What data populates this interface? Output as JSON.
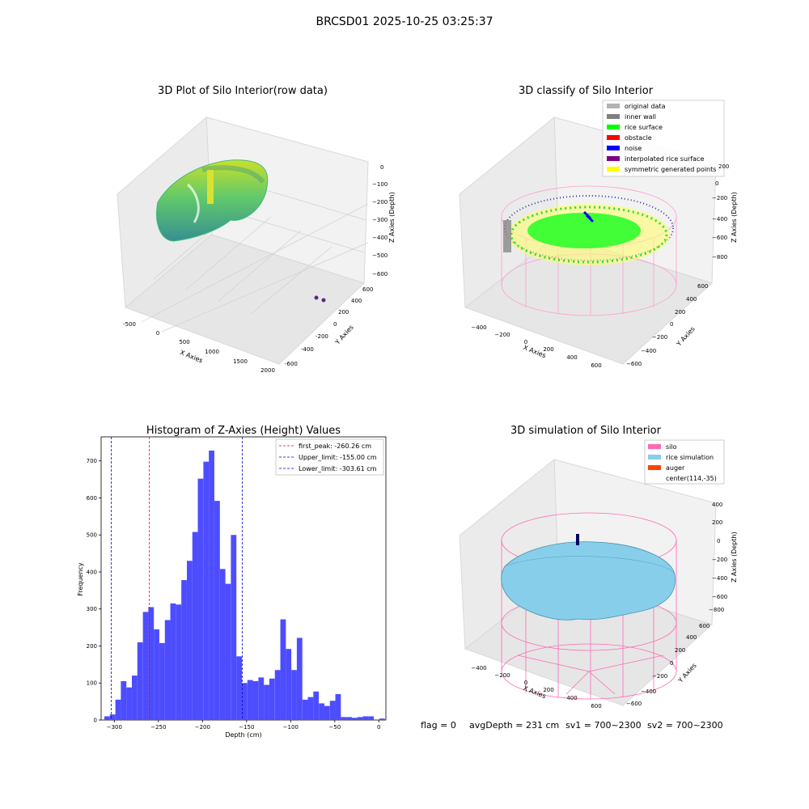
{
  "figure_title": "BRCSD01 2025-10-25 03:25:37",
  "status_line": {
    "flag": "flag = 0",
    "avg_depth": "avgDepth = 231 cm",
    "sv1": "sv1 = 700~2300",
    "sv2": "sv2 = 700~2300"
  },
  "chart_data": [
    {
      "type": "scatter",
      "title": "3D Plot of Silo Interior(row data)",
      "xlabel": "X Axies",
      "ylabel": "Y Axies",
      "zlabel": "Z Axies (Depth)",
      "x_ticks": [
        "-500",
        "0",
        "500",
        "1000",
        "1500",
        "2000"
      ],
      "y_ticks": [
        "-600",
        "-400",
        "-200",
        "0",
        "200",
        "400",
        "600"
      ],
      "z_ticks": [
        "0",
        "−100",
        "−200",
        "−300",
        "−400",
        "−500",
        "−600"
      ],
      "xlim": [
        -600,
        2000
      ],
      "ylim": [
        -600,
        600
      ],
      "zlim": [
        -600,
        0
      ],
      "colormap": [
        "#2c8c8c",
        "#3cb878",
        "#7fd04a",
        "#c8e020"
      ],
      "outliers": [
        {
          "x": 1850,
          "y": -300,
          "z": -600
        },
        {
          "x": 1950,
          "y": -300,
          "z": -600
        }
      ]
    },
    {
      "type": "scatter",
      "title": "3D classify of Silo Interior",
      "xlabel": "X Axies",
      "ylabel": "Y Axies",
      "zlabel": "Z Axies (Depth)",
      "x_ticks": [
        "−400",
        "−200",
        "0",
        "200",
        "400",
        "600"
      ],
      "y_ticks": [
        "−600",
        "−400",
        "−200",
        "0",
        "200",
        "400",
        "600"
      ],
      "z_ticks": [
        "200",
        "0",
        "−200",
        "−400",
        "−600",
        "−800"
      ],
      "legend_position": "top-right",
      "legend": [
        {
          "label": "original data",
          "color": "#b3b3b3"
        },
        {
          "label": "inner wall",
          "color": "#808080"
        },
        {
          "label": "rice surface",
          "color": "#00ff00"
        },
        {
          "label": "obstacle",
          "color": "#ff0000"
        },
        {
          "label": "noise",
          "color": "#0000ff"
        },
        {
          "label": "interpolated rice surface",
          "color": "#800080"
        },
        {
          "label": "symmetric generated points",
          "color": "#ffff00"
        }
      ]
    },
    {
      "type": "bar",
      "title": "Histogram of Z-Axies (Height) Values",
      "xlabel": "Depth (cm)",
      "ylabel": "Frequency",
      "xlim": [
        -315,
        8
      ],
      "ylim": [
        0,
        765
      ],
      "x_ticks": [
        -300,
        -250,
        -200,
        -150,
        -100,
        -50,
        0
      ],
      "x_tick_labels": [
        "−300",
        "−250",
        "−200",
        "−150",
        "−100",
        "−50",
        "0"
      ],
      "y_ticks": [
        0,
        100,
        200,
        300,
        400,
        500,
        600,
        700
      ],
      "bar_color": "#4d4dff",
      "bin_width": 6.24,
      "bins": [
        {
          "x": -308.2,
          "y": 10
        },
        {
          "x": -302.0,
          "y": 15
        },
        {
          "x": -295.7,
          "y": 55
        },
        {
          "x": -289.5,
          "y": 105
        },
        {
          "x": -283.3,
          "y": 88
        },
        {
          "x": -277.0,
          "y": 120
        },
        {
          "x": -270.8,
          "y": 210
        },
        {
          "x": -264.5,
          "y": 292
        },
        {
          "x": -258.3,
          "y": 305
        },
        {
          "x": -252.1,
          "y": 245
        },
        {
          "x": -245.8,
          "y": 208
        },
        {
          "x": -239.6,
          "y": 270
        },
        {
          "x": -233.4,
          "y": 315
        },
        {
          "x": -227.1,
          "y": 312
        },
        {
          "x": -220.9,
          "y": 378
        },
        {
          "x": -214.6,
          "y": 430
        },
        {
          "x": -208.4,
          "y": 508
        },
        {
          "x": -202.2,
          "y": 652
        },
        {
          "x": -195.9,
          "y": 698
        },
        {
          "x": -189.7,
          "y": 728
        },
        {
          "x": -183.4,
          "y": 592
        },
        {
          "x": -177.2,
          "y": 408
        },
        {
          "x": -171.0,
          "y": 368
        },
        {
          "x": -164.7,
          "y": 500
        },
        {
          "x": -158.5,
          "y": 172
        },
        {
          "x": -152.3,
          "y": 100
        },
        {
          "x": -146.0,
          "y": 108
        },
        {
          "x": -139.8,
          "y": 105
        },
        {
          "x": -133.5,
          "y": 115
        },
        {
          "x": -127.3,
          "y": 95
        },
        {
          "x": -121.1,
          "y": 112
        },
        {
          "x": -114.8,
          "y": 135
        },
        {
          "x": -108.6,
          "y": 272
        },
        {
          "x": -102.4,
          "y": 192
        },
        {
          "x": -96.1,
          "y": 135
        },
        {
          "x": -89.9,
          "y": 222
        },
        {
          "x": -83.6,
          "y": 55
        },
        {
          "x": -77.4,
          "y": 62
        },
        {
          "x": -71.2,
          "y": 77
        },
        {
          "x": -64.9,
          "y": 45
        },
        {
          "x": -58.7,
          "y": 38
        },
        {
          "x": -52.4,
          "y": 52
        },
        {
          "x": -46.2,
          "y": 70
        },
        {
          "x": -40.0,
          "y": 8
        },
        {
          "x": -33.7,
          "y": 8
        },
        {
          "x": -27.5,
          "y": 6
        },
        {
          "x": -21.3,
          "y": 8
        },
        {
          "x": -15.0,
          "y": 10
        },
        {
          "x": -8.8,
          "y": 10
        },
        {
          "x": -2.5,
          "y": 0
        },
        {
          "x": 3.7,
          "y": 4
        }
      ],
      "vlines": [
        {
          "label": "first_peak: -260.26 cm",
          "x": -260.26,
          "color": "#ff0000"
        },
        {
          "label": "Upper_limit: -155.00 cm",
          "x": -155.0,
          "color": "#0000cc"
        },
        {
          "label": "Lower_limit: -303.61 cm",
          "x": -303.61,
          "color": "#0000cc"
        }
      ],
      "legend_position": "top-right"
    },
    {
      "type": "area",
      "title": "3D simulation of Silo Interior",
      "xlabel": "X Axies",
      "ylabel": "Y Axies",
      "zlabel": "Z Axies (Depth)",
      "x_ticks": [
        "−400",
        "−200",
        "0",
        "200",
        "400",
        "600"
      ],
      "y_ticks": [
        "−600",
        "−400",
        "−200",
        "0",
        "200",
        "400",
        "600"
      ],
      "z_ticks": [
        "400",
        "200",
        "0",
        "−200",
        "−400",
        "−600",
        "−800"
      ],
      "legend_position": "top-right",
      "legend": [
        {
          "label": "silo",
          "color": "#ff69b4"
        },
        {
          "label": "rice simulation",
          "color": "#87ceeb"
        },
        {
          "label": "auger",
          "color": "#ff4500"
        },
        {
          "label": "center(114,-35)",
          "color": ""
        }
      ]
    }
  ]
}
